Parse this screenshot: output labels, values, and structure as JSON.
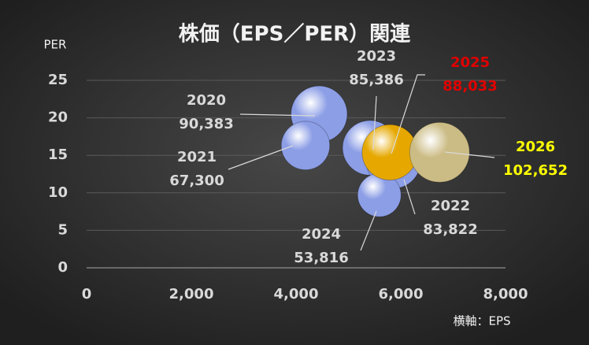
{
  "chart_data": {
    "type": "bubble",
    "title": "株価（EPS／PER）関連",
    "y_axis_label": "PER",
    "x_axis_label": "横軸：EPS",
    "xlim": [
      0,
      8000
    ],
    "xticks": [
      0,
      {
        "value": 2000,
        "label": "2,000"
      },
      {
        "value": 4000,
        "label": "4,000"
      },
      {
        "value": 6000,
        "label": "6,000"
      },
      {
        "value": 8000,
        "label": "8,000"
      }
    ],
    "ylim": [
      0,
      25
    ],
    "yticks": [
      0,
      5,
      10,
      15,
      20,
      25
    ],
    "grid": true,
    "series": [
      {
        "name": "2020",
        "color": "#8c9ee6",
        "label_color": "#d9d9d9",
        "x": [
          4440
        ],
        "values": [
          20.5
        ],
        "sizes": [
          90383
        ],
        "size_labels": [
          "90,383"
        ]
      },
      {
        "name": "2021",
        "color": "#8c9ee6",
        "label_color": "#d9d9d9",
        "x": [
          4180
        ],
        "values": [
          16.3
        ],
        "sizes": [
          67300
        ],
        "size_labels": [
          "67,300"
        ]
      },
      {
        "name": "2022",
        "color": "#8c9ee6",
        "label_color": "#d9d9d9",
        "x": [
          5860
        ],
        "values": [
          14.2
        ],
        "sizes": [
          83822
        ],
        "size_labels": [
          "83,822"
        ]
      },
      {
        "name": "2023",
        "color": "#8c9ee6",
        "label_color": "#d9d9d9",
        "x": [
          5410
        ],
        "values": [
          16.0
        ],
        "sizes": [
          85386
        ],
        "size_labels": [
          "85,386"
        ]
      },
      {
        "name": "2024",
        "color": "#8c9ee6",
        "label_color": "#d9d9d9",
        "x": [
          5590
        ],
        "values": [
          9.7
        ],
        "sizes": [
          53816
        ],
        "size_labels": [
          "53,816"
        ]
      },
      {
        "name": "2025",
        "color": "#e6a800",
        "label_color": "#e00000",
        "x": [
          5790
        ],
        "values": [
          15.4
        ],
        "sizes": [
          88033
        ],
        "size_labels": [
          "88,033"
        ]
      },
      {
        "name": "2026",
        "color": "#cbbb84",
        "label_color": "#ffff00",
        "x": [
          6740
        ],
        "values": [
          15.4
        ],
        "sizes": [
          102652
        ],
        "size_labels": [
          "102,652"
        ]
      }
    ]
  }
}
